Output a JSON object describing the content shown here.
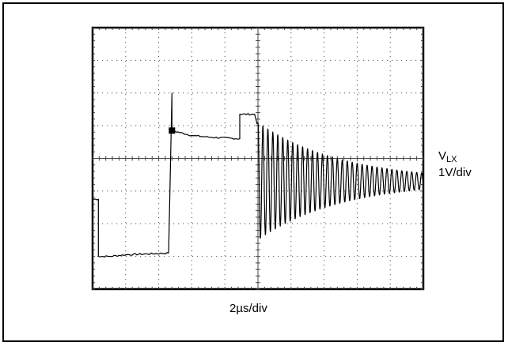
{
  "chart_data": {
    "type": "line",
    "title": "",
    "channel": {
      "name": "V",
      "subscript": "LX",
      "scale": "1V/div"
    },
    "xlabel": "2µs/div",
    "ylabel": "",
    "grid": true,
    "divisions": {
      "x": 10,
      "y": 8
    },
    "xlim": [
      0,
      20
    ],
    "ylim": [
      -4,
      4
    ],
    "units": {
      "x": "µs",
      "y": "V"
    },
    "trigger_marker": {
      "x": 4.8,
      "y": 0.85
    },
    "series": [
      {
        "segments": [
          {
            "kind": "step",
            "points": [
              [
                0,
                -1.25
              ],
              [
                0.35,
                -1.25
              ],
              [
                0.35,
                -3.0
              ],
              [
                1.0,
                -3.0
              ],
              [
                2.0,
                -2.95
              ],
              [
                4.6,
                -2.9
              ]
            ]
          },
          {
            "kind": "step",
            "points": [
              [
                4.6,
                -2.9
              ],
              [
                4.8,
                2.0
              ],
              [
                4.8,
                0.85
              ],
              [
                6.0,
                0.7
              ],
              [
                7.0,
                0.65
              ],
              [
                8.9,
                0.6
              ],
              [
                8.9,
                1.35
              ],
              [
                9.8,
                1.35
              ],
              [
                9.95,
                1.05
              ]
            ]
          },
          {
            "kind": "ringing",
            "start_x": 10.0,
            "end_x": 20.0,
            "center_y": -0.7,
            "initial_amplitude": 1.8,
            "final_amplitude": 0.25,
            "period": 0.3
          }
        ]
      }
    ]
  }
}
